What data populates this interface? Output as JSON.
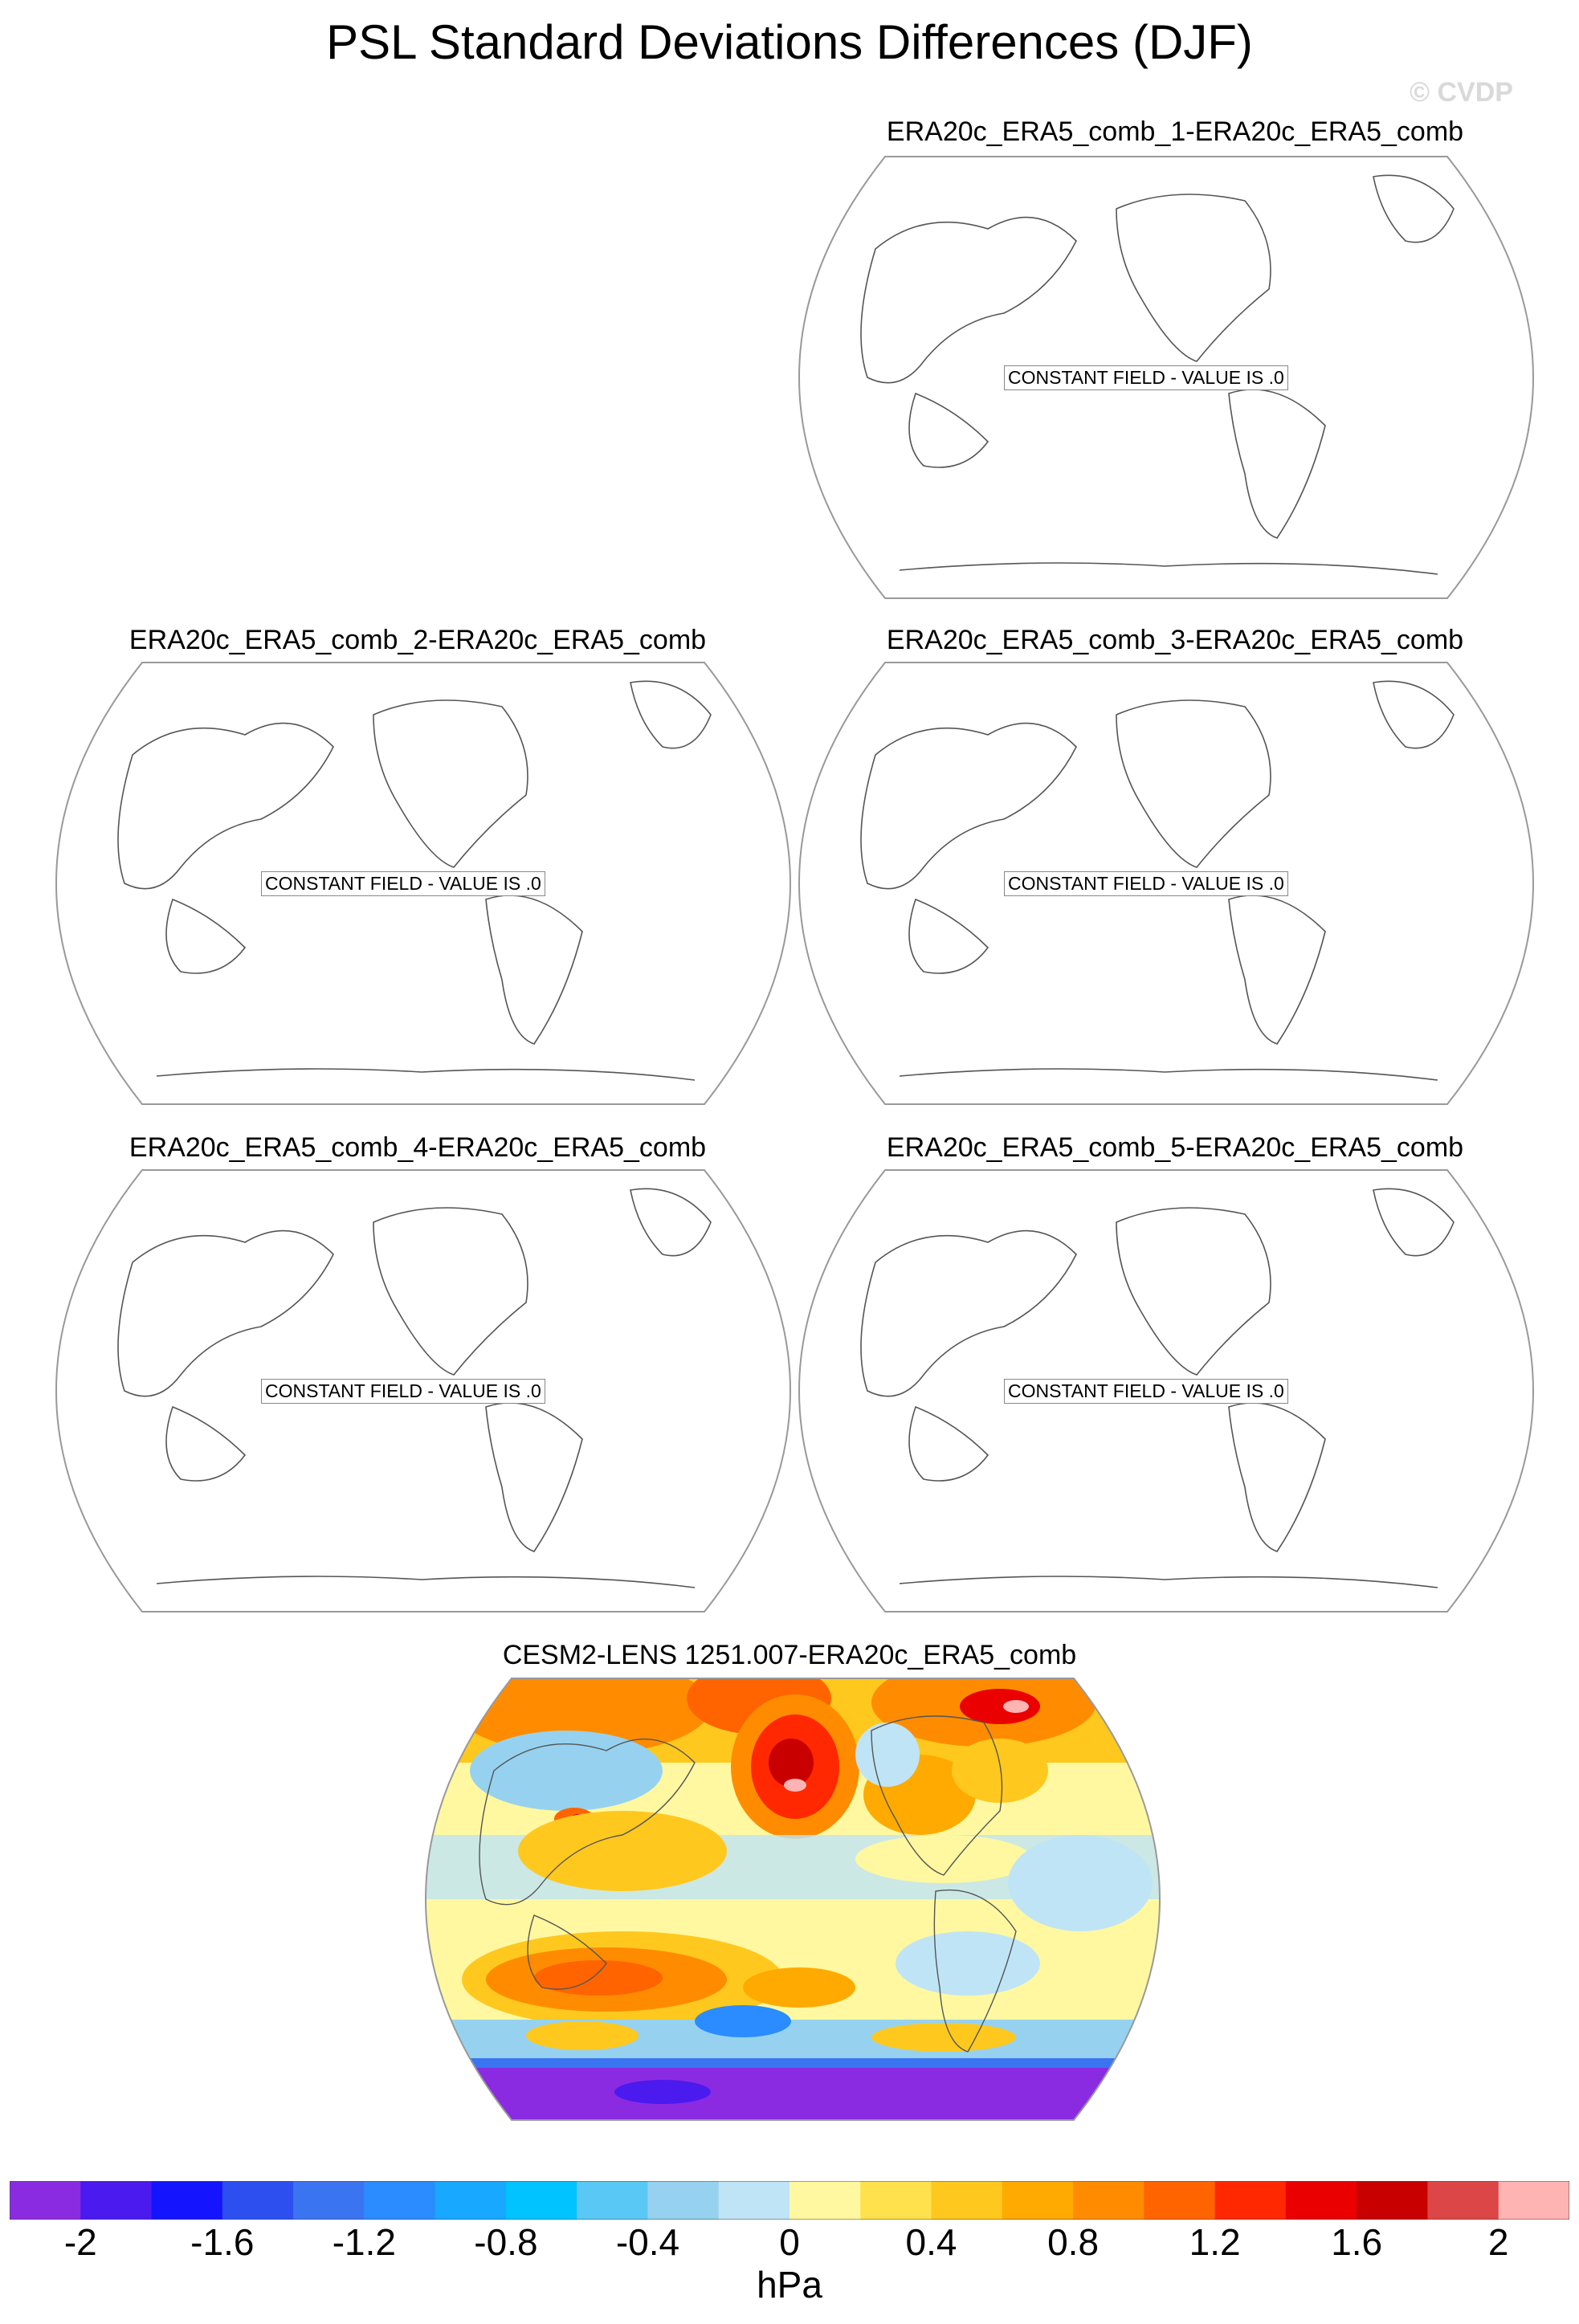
{
  "title": "PSL Standard Deviations Differences (DJF)",
  "watermark": "© CVDP",
  "panels": [
    {
      "title": "ERA20c_ERA5_comb_1-ERA20c_ERA5_comb",
      "field_note": "CONSTANT FIELD - VALUE IS .0"
    },
    {
      "title": "ERA20c_ERA5_comb_2-ERA20c_ERA5_comb",
      "field_note": "CONSTANT FIELD - VALUE IS .0"
    },
    {
      "title": "ERA20c_ERA5_comb_3-ERA20c_ERA5_comb",
      "field_note": "CONSTANT FIELD - VALUE IS .0"
    },
    {
      "title": "ERA20c_ERA5_comb_4-ERA20c_ERA5_comb",
      "field_note": "CONSTANT FIELD - VALUE IS .0"
    },
    {
      "title": "ERA20c_ERA5_comb_5-ERA20c_ERA5_comb",
      "field_note": "CONSTANT FIELD - VALUE IS .0"
    },
    {
      "title": "CESM2-LENS 1251.007-ERA20c_ERA5_comb"
    }
  ],
  "colorbar": {
    "units": "hPa",
    "tick_labels": [
      "-2",
      "-1.6",
      "-1.2",
      "-0.8",
      "-0.4",
      "0",
      "0.4",
      "0.8",
      "1.2",
      "1.6",
      "2"
    ],
    "colors": [
      "#8a2be2",
      "#4b1aee",
      "#1414ff",
      "#2e4ff0",
      "#3b74f0",
      "#2a8cff",
      "#18a8ff",
      "#00c3ff",
      "#5ac8f5",
      "#96d2f0",
      "#bfe4f6",
      "#fff8a0",
      "#ffe14d",
      "#ffc81e",
      "#ffaa00",
      "#ff8c00",
      "#ff6400",
      "#ff2800",
      "#eb0000",
      "#c80000",
      "#dc4646",
      "#ffb4b4"
    ]
  }
}
